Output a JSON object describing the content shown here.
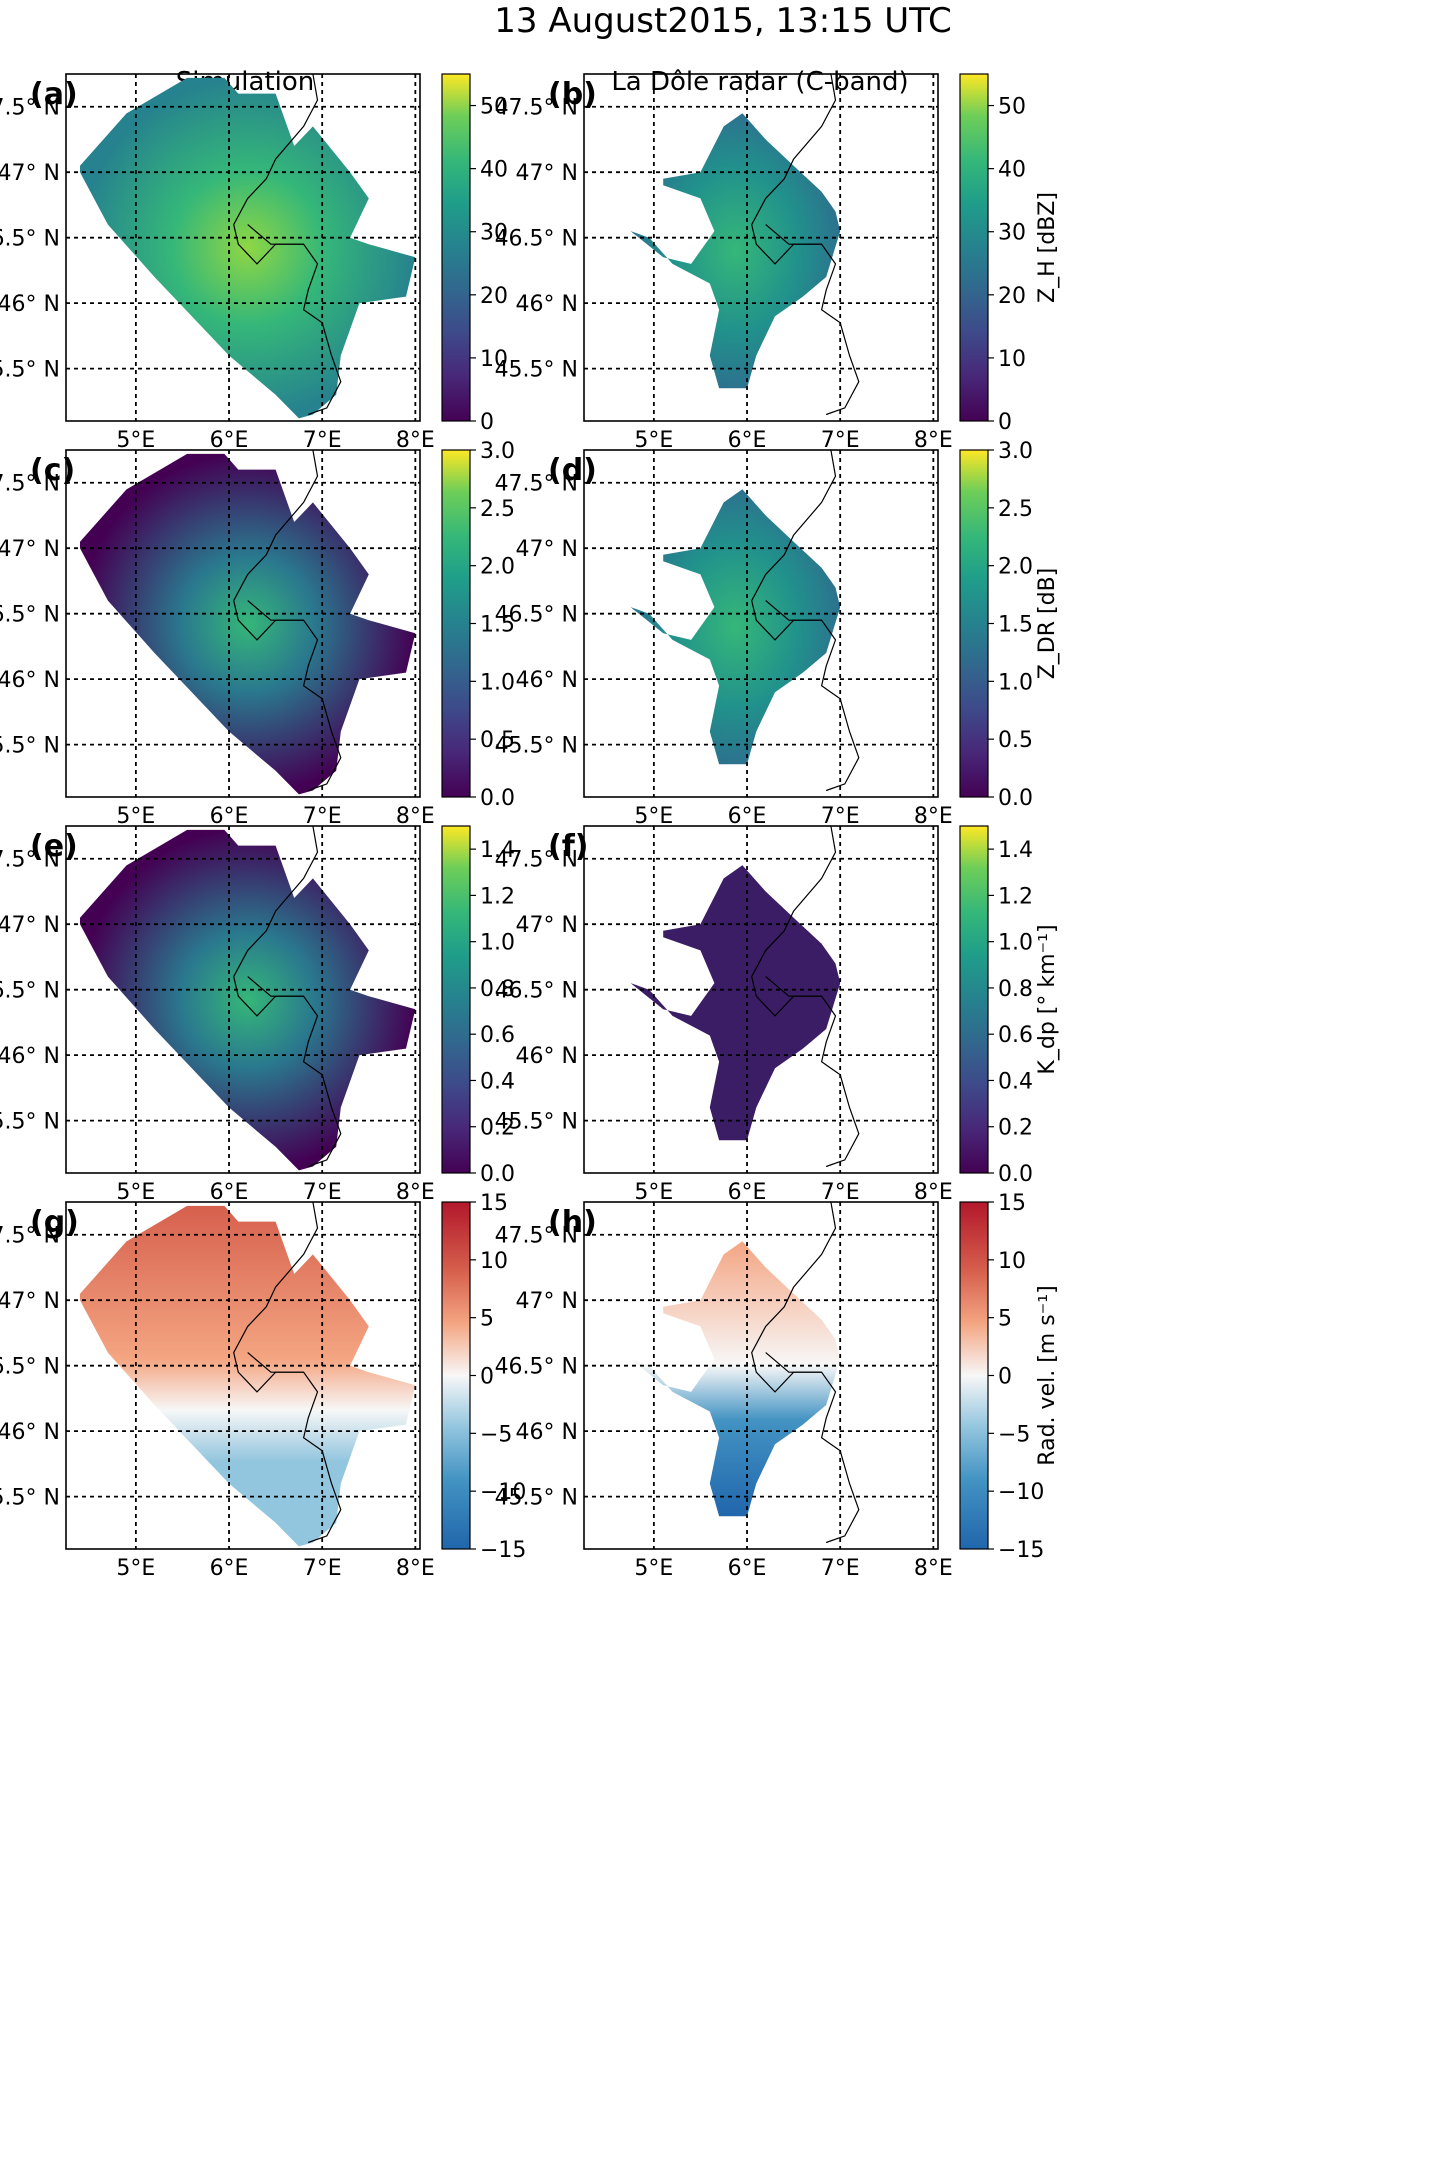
{
  "figure": {
    "title": "13 August2015, 13:15 UTC",
    "column_titles": [
      "Simulation",
      "La Dôle radar (C-band)"
    ]
  },
  "chart_data": [
    {
      "type": "heatmap",
      "panel": "(a)",
      "variable": "Z_H",
      "cbar_label": "",
      "cbar_ticks": [
        0,
        10,
        20,
        30,
        40,
        50
      ],
      "cbar_range": [
        0,
        55
      ],
      "colormap": "viridis",
      "show_xticks": true
    },
    {
      "type": "heatmap",
      "panel": "(b)",
      "variable": "Z_H",
      "cbar_label": "Z_H [dBZ]",
      "cbar_ticks": [
        0,
        10,
        20,
        30,
        40,
        50
      ],
      "cbar_range": [
        0,
        55
      ],
      "colormap": "viridis",
      "show_xticks": true
    },
    {
      "type": "heatmap",
      "panel": "(c)",
      "variable": "Z_DR",
      "cbar_label": "",
      "cbar_ticks": [
        0.0,
        0.5,
        1.0,
        1.5,
        2.0,
        2.5,
        3.0
      ],
      "cbar_range": [
        0,
        3
      ],
      "colormap": "viridis",
      "show_xticks": true
    },
    {
      "type": "heatmap",
      "panel": "(d)",
      "variable": "Z_DR",
      "cbar_label": "Z_DR [dB]",
      "cbar_ticks": [
        0.0,
        0.5,
        1.0,
        1.5,
        2.0,
        2.5,
        3.0
      ],
      "cbar_range": [
        0,
        3
      ],
      "colormap": "viridis",
      "show_xticks": true
    },
    {
      "type": "heatmap",
      "panel": "(e)",
      "variable": "K_dp",
      "cbar_label": "",
      "cbar_ticks": [
        0.0,
        0.2,
        0.4,
        0.6,
        0.8,
        1.0,
        1.2,
        1.4
      ],
      "cbar_range": [
        0,
        1.5
      ],
      "colormap": "viridis",
      "show_xticks": true
    },
    {
      "type": "heatmap",
      "panel": "(f)",
      "variable": "K_dp",
      "cbar_label": "K_dp [° km⁻¹]",
      "cbar_ticks": [
        0.0,
        0.2,
        0.4,
        0.6,
        0.8,
        1.0,
        1.2,
        1.4
      ],
      "cbar_range": [
        0,
        1.5
      ],
      "colormap": "viridis",
      "show_xticks": true
    },
    {
      "type": "heatmap",
      "panel": "(g)",
      "variable": "Rad. vel.",
      "cbar_label": "",
      "cbar_ticks": [
        -15,
        -10,
        -5,
        0,
        5,
        10,
        15
      ],
      "cbar_range": [
        -15,
        15
      ],
      "colormap": "RdBu_r",
      "show_xticks": true
    },
    {
      "type": "heatmap",
      "panel": "(h)",
      "variable": "Rad. vel.",
      "cbar_label": "Rad. vel. [m s⁻¹]",
      "cbar_ticks": [
        -15,
        -10,
        -5,
        0,
        5,
        10,
        15
      ],
      "cbar_range": [
        -15,
        15
      ],
      "colormap": "RdBu_r",
      "show_xticks": true
    }
  ],
  "axes": {
    "lon_ticks": [
      5,
      6,
      7,
      8
    ],
    "lon_labels": [
      "5°E",
      "6°E",
      "7°E",
      "8°E"
    ],
    "lat_ticks": [
      47.5,
      47,
      46.5,
      46,
      45.5
    ],
    "lat_labels": [
      "47.5° N",
      "47° N",
      "46.5° N",
      "46° N",
      "45.5° N"
    ],
    "lon_range": [
      4.25,
      8.05
    ],
    "lat_range": [
      45.1,
      47.75
    ]
  }
}
